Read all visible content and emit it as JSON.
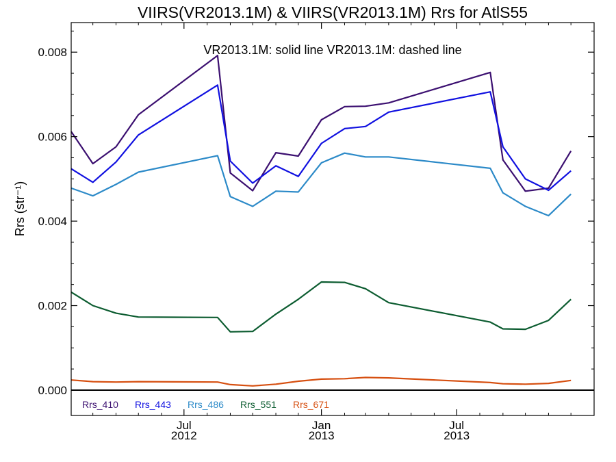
{
  "chart_data": {
    "type": "line",
    "title": "VIIRS(VR2013.1M) & VIIRS(VR2013.1M)  Rrs for AtlS55",
    "subtitle": "VR2013.1M: solid line   VR2013.1M: dashed line",
    "ylabel": "Rrs (str⁻¹)",
    "xlabel": "",
    "xlim": [
      "2012-02-01",
      "2014-01-01"
    ],
    "ylim": [
      -0.0006,
      0.0087
    ],
    "yticks": [
      0.0,
      0.002,
      0.004,
      0.006,
      0.008
    ],
    "ytick_labels": [
      "0.000",
      "0.002",
      "0.004",
      "0.006",
      "0.008"
    ],
    "xticks": [
      {
        "date": "2012-07-01",
        "line1": "Jul",
        "line2": "2012"
      },
      {
        "date": "2013-01-01",
        "line1": "Jan",
        "line2": "2013"
      },
      {
        "date": "2013-07-01",
        "line1": "Jul",
        "line2": "2013"
      }
    ],
    "zero_line": 0.0,
    "grid": false,
    "legend_position": "bottom-left",
    "x": [
      "2012-02-01",
      "2012-03-01",
      "2012-04-01",
      "2012-05-01",
      "2012-08-15",
      "2012-09-01",
      "2012-10-01",
      "2012-11-01",
      "2012-12-01",
      "2013-01-01",
      "2013-02-01",
      "2013-03-01",
      "2013-04-01",
      "2013-08-15",
      "2013-09-01",
      "2013-10-01",
      "2013-11-01",
      "2013-12-01"
    ],
    "series": [
      {
        "name": "Rrs_410",
        "color": "#3b0f70",
        "values": [
          0.00612,
          0.00536,
          0.00576,
          0.00652,
          0.00792,
          0.00514,
          0.00472,
          0.00562,
          0.00554,
          0.0064,
          0.00671,
          0.00672,
          0.0068,
          0.00752,
          0.00545,
          0.00471,
          0.00478,
          0.00566
        ]
      },
      {
        "name": "Rrs_443",
        "color": "#1010e0",
        "values": [
          0.00524,
          0.00492,
          0.0054,
          0.00604,
          0.00722,
          0.00542,
          0.0049,
          0.00531,
          0.00506,
          0.00584,
          0.00619,
          0.00624,
          0.00658,
          0.00706,
          0.00576,
          0.005,
          0.00473,
          0.00519
        ]
      },
      {
        "name": "Rrs_486",
        "color": "#2c8ac8",
        "values": [
          0.00478,
          0.0046,
          0.00487,
          0.00516,
          0.00555,
          0.00458,
          0.00435,
          0.00471,
          0.00469,
          0.00538,
          0.00561,
          0.00552,
          0.00552,
          0.00525,
          0.00467,
          0.00435,
          0.00413,
          0.00464
        ]
      },
      {
        "name": "Rrs_551",
        "color": "#0c5c30",
        "values": [
          0.00232,
          0.002,
          0.00182,
          0.00173,
          0.00172,
          0.00138,
          0.00139,
          0.0018,
          0.00215,
          0.00256,
          0.00255,
          0.0024,
          0.00207,
          0.00161,
          0.00145,
          0.00144,
          0.00165,
          0.00215
        ]
      },
      {
        "name": "Rrs_671",
        "color": "#d64f10",
        "values": [
          0.00024,
          0.0002,
          0.00019,
          0.0002,
          0.00019,
          0.00013,
          0.0001,
          0.00014,
          0.00021,
          0.00026,
          0.00027,
          0.0003,
          0.00029,
          0.00018,
          0.00015,
          0.00014,
          0.00016,
          0.00023
        ]
      }
    ]
  }
}
